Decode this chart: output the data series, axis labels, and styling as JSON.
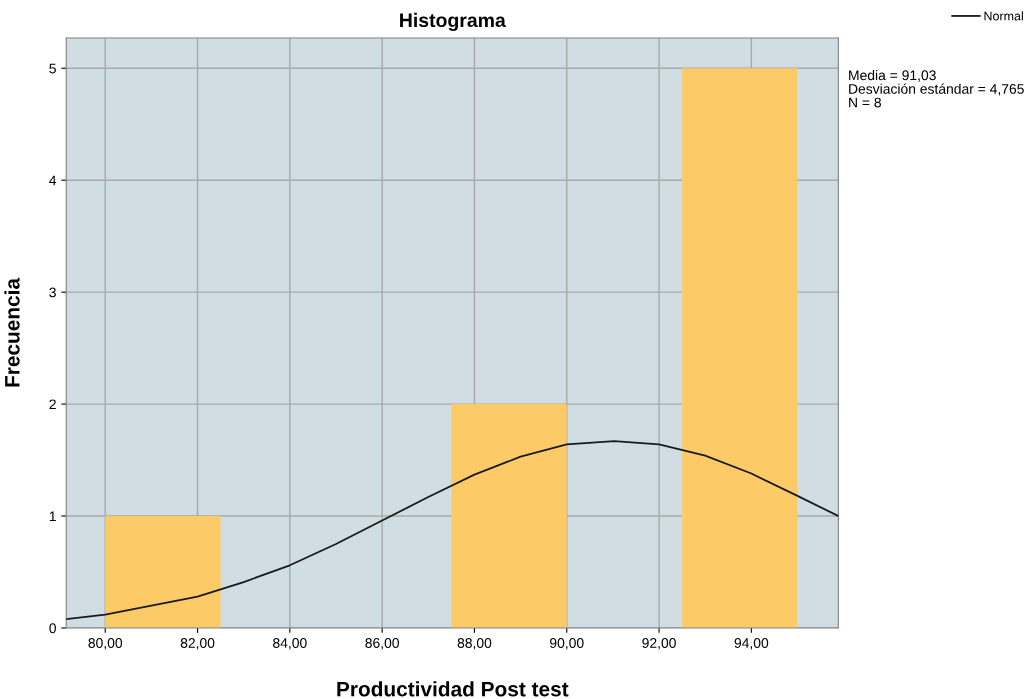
{
  "chart_data": {
    "type": "histogram",
    "title": "Histograma",
    "xlabel": "Productividad Post test",
    "ylabel": "Frecuencia",
    "bins": [
      80,
      82.5,
      85,
      87.5,
      90,
      92.5,
      95
    ],
    "values": [
      1,
      0,
      0,
      2,
      0,
      5
    ],
    "color": "#fdca68",
    "series": [
      {
        "name": "Normal",
        "type": "line",
        "color": "#1a1a1a",
        "x": [
          79.155,
          80,
          82,
          83,
          84,
          85,
          86,
          87,
          88,
          89,
          90,
          91.03,
          92,
          93,
          94,
          95,
          95.885
        ],
        "values": [
          0.08,
          0.12,
          0.28,
          0.41,
          0.56,
          0.75,
          0.96,
          1.17,
          1.37,
          1.53,
          1.64,
          1.67,
          1.64,
          1.54,
          1.38,
          1.18,
          1.0
        ]
      }
    ],
    "xlim": [
      79.155,
      95.885
    ],
    "xticks": [
      {
        "value": 80,
        "label": "80,00"
      },
      {
        "value": 82,
        "label": "82,00"
      },
      {
        "value": 84,
        "label": "84,00"
      },
      {
        "value": 86,
        "label": "86,00"
      },
      {
        "value": 88,
        "label": "88,00"
      },
      {
        "value": 90,
        "label": "90,00"
      },
      {
        "value": 92,
        "label": "92,00"
      },
      {
        "value": 94,
        "label": "94,00"
      }
    ],
    "ylim": [
      0,
      5.27
    ],
    "yticks": [
      0,
      1,
      2,
      3,
      4,
      5
    ],
    "grid": true,
    "legend": "top right",
    "annotations": [
      "Media = 91,03",
      "Desviación estándar = 4,765",
      "N = 8"
    ]
  }
}
